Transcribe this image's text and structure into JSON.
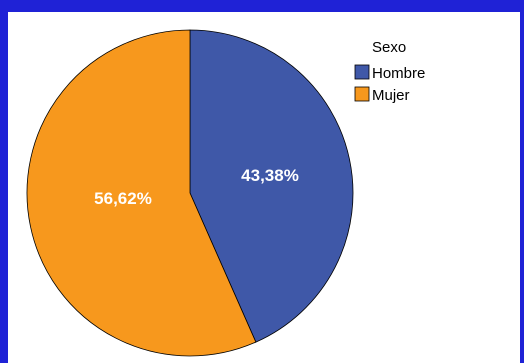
{
  "chart_data": {
    "type": "pie",
    "legend_title": "Sexo",
    "legend_position": "top-right",
    "slices": [
      {
        "name": "Hombre",
        "value": 43.38,
        "label": "43,38%",
        "color": "#3f58a8"
      },
      {
        "name": "Mujer",
        "value": 56.62,
        "label": "56,62%",
        "color": "#f7981d"
      }
    ]
  }
}
